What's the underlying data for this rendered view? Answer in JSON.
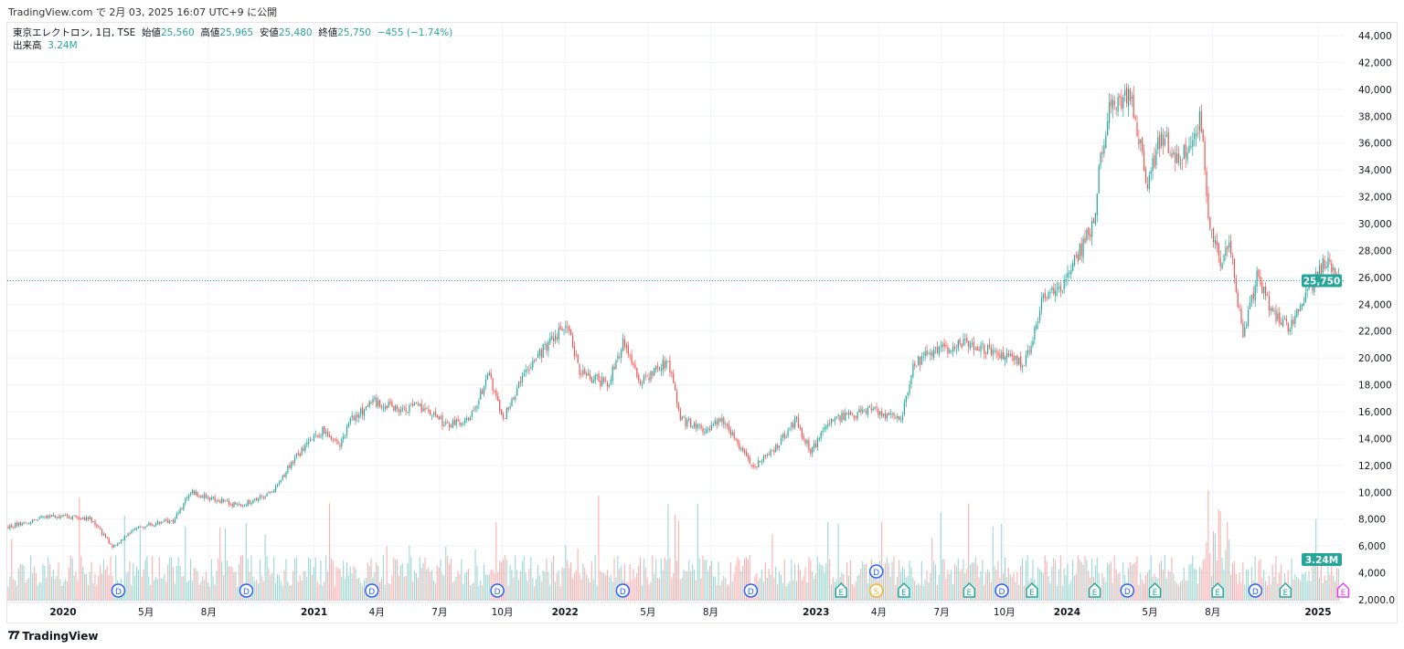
{
  "published": "TradingView.com で 2月 03, 2025 16:07 UTC+9 に公開",
  "legend": {
    "symbol": "東京エレクトロン, 1日, TSE",
    "open_label": "始値",
    "open": "25,560",
    "high_label": "高値",
    "high": "25,965",
    "low_label": "安値",
    "low": "25,480",
    "close_label": "終値",
    "close": "25,750",
    "change": "−455 (−1.74%)",
    "volume_label": "出来高",
    "volume": "3.24M"
  },
  "brand": "TradingView",
  "colors": {
    "up": "#26a69a",
    "down": "#ef5350",
    "dividend": "#2962ff",
    "earnings": "#26a69a",
    "split": "#f0b429",
    "upcoming": "#e040fb"
  },
  "chart_data": {
    "type": "candlestick",
    "title": "東京エレクトロン, 1日, TSE",
    "ylim": [
      2000,
      44000
    ],
    "y_ticks": [
      "44,000",
      "42,000",
      "40,000",
      "38,000",
      "36,000",
      "34,000",
      "32,000",
      "30,000",
      "28,000",
      "26,000",
      "24,000",
      "22,000",
      "20,000",
      "18,000",
      "16,000",
      "14,000",
      "12,000",
      "10,000",
      "8,000",
      "6,000",
      "4,000",
      "2,000.0"
    ],
    "y_tick_values": [
      44000,
      42000,
      40000,
      38000,
      36000,
      34000,
      32000,
      30000,
      28000,
      26000,
      24000,
      22000,
      20000,
      18000,
      16000,
      14000,
      12000,
      10000,
      8000,
      6000,
      4000,
      2000
    ],
    "x_ticks": [
      {
        "t": 2020.0,
        "label": "2020",
        "bold": true
      },
      {
        "t": 2020.33,
        "label": "5月"
      },
      {
        "t": 2020.58,
        "label": "8月"
      },
      {
        "t": 2021.0,
        "label": "2021",
        "bold": true
      },
      {
        "t": 2021.25,
        "label": "4月"
      },
      {
        "t": 2021.5,
        "label": "7月"
      },
      {
        "t": 2021.75,
        "label": "10月"
      },
      {
        "t": 2022.0,
        "label": "2022",
        "bold": true
      },
      {
        "t": 2022.33,
        "label": "5月"
      },
      {
        "t": 2022.58,
        "label": "8月"
      },
      {
        "t": 2023.0,
        "label": "2023",
        "bold": true
      },
      {
        "t": 2023.25,
        "label": "4月"
      },
      {
        "t": 2023.5,
        "label": "7月"
      },
      {
        "t": 2023.75,
        "label": "10月"
      },
      {
        "t": 2024.0,
        "label": "2024",
        "bold": true
      },
      {
        "t": 2024.33,
        "label": "5月"
      },
      {
        "t": 2024.58,
        "label": "8月"
      },
      {
        "t": 2025.0,
        "label": "2025",
        "bold": true
      }
    ],
    "last_price": 25750,
    "last_price_label": "25,750",
    "last_volume_label": "3.24M",
    "price_path": [
      [
        2019.78,
        7400
      ],
      [
        2019.95,
        8250
      ],
      [
        2020.11,
        8050
      ],
      [
        2020.2,
        5900
      ],
      [
        2020.29,
        7400
      ],
      [
        2020.44,
        7900
      ],
      [
        2020.51,
        10000
      ],
      [
        2020.7,
        9000
      ],
      [
        2020.84,
        10000
      ],
      [
        2020.91,
        12300
      ],
      [
        2021.04,
        14700
      ],
      [
        2021.1,
        13400
      ],
      [
        2021.15,
        15400
      ],
      [
        2021.24,
        16750
      ],
      [
        2021.35,
        16200
      ],
      [
        2021.42,
        16400
      ],
      [
        2021.53,
        15000
      ],
      [
        2021.62,
        15400
      ],
      [
        2021.7,
        18800
      ],
      [
        2021.75,
        15400
      ],
      [
        2021.84,
        18800
      ],
      [
        2021.92,
        20800
      ],
      [
        2022.01,
        22500
      ],
      [
        2022.06,
        18800
      ],
      [
        2022.17,
        18100
      ],
      [
        2022.23,
        21100
      ],
      [
        2022.3,
        18100
      ],
      [
        2022.41,
        19800
      ],
      [
        2022.46,
        15400
      ],
      [
        2022.55,
        14700
      ],
      [
        2022.63,
        15400
      ],
      [
        2022.75,
        11850
      ],
      [
        2022.84,
        13350
      ],
      [
        2022.92,
        15400
      ],
      [
        2022.98,
        13000
      ],
      [
        2023.06,
        15400
      ],
      [
        2023.21,
        16100
      ],
      [
        2023.34,
        15400
      ],
      [
        2023.39,
        19500
      ],
      [
        2023.46,
        20500
      ],
      [
        2023.61,
        21150
      ],
      [
        2023.72,
        20500
      ],
      [
        2023.83,
        19500
      ],
      [
        2023.9,
        24200
      ],
      [
        2023.99,
        25600
      ],
      [
        2024.06,
        28300
      ],
      [
        2024.11,
        30000
      ],
      [
        2024.12,
        33000
      ],
      [
        2024.17,
        39200
      ],
      [
        2024.26,
        39200
      ],
      [
        2024.32,
        33000
      ],
      [
        2024.37,
        36450
      ],
      [
        2024.45,
        34750
      ],
      [
        2024.53,
        37800
      ],
      [
        2024.55,
        33750
      ],
      [
        2024.56,
        30700
      ],
      [
        2024.61,
        26950
      ],
      [
        2024.65,
        28650
      ],
      [
        2024.7,
        21500
      ],
      [
        2024.76,
        26250
      ],
      [
        2024.81,
        23550
      ],
      [
        2024.89,
        22200
      ],
      [
        2024.96,
        24900
      ],
      [
        2025.03,
        27300
      ],
      [
        2025.09,
        25750
      ]
    ],
    "events": [
      {
        "t": 2020.22,
        "type": "D"
      },
      {
        "t": 2020.73,
        "type": "D"
      },
      {
        "t": 2021.23,
        "type": "D"
      },
      {
        "t": 2021.73,
        "type": "D"
      },
      {
        "t": 2022.23,
        "type": "D"
      },
      {
        "t": 2022.74,
        "type": "D"
      },
      {
        "t": 2023.1,
        "type": "E"
      },
      {
        "t": 2023.24,
        "type": "S"
      },
      {
        "t": 2023.24,
        "type": "D",
        "stack": 1
      },
      {
        "t": 2023.35,
        "type": "E"
      },
      {
        "t": 2023.61,
        "type": "E"
      },
      {
        "t": 2023.74,
        "type": "D"
      },
      {
        "t": 2023.86,
        "type": "E"
      },
      {
        "t": 2024.11,
        "type": "E"
      },
      {
        "t": 2024.24,
        "type": "D"
      },
      {
        "t": 2024.35,
        "type": "E"
      },
      {
        "t": 2024.6,
        "type": "E"
      },
      {
        "t": 2024.75,
        "type": "D"
      },
      {
        "t": 2024.87,
        "type": "E"
      },
      {
        "t": 2025.1,
        "type": "E",
        "upcoming": true
      }
    ]
  }
}
